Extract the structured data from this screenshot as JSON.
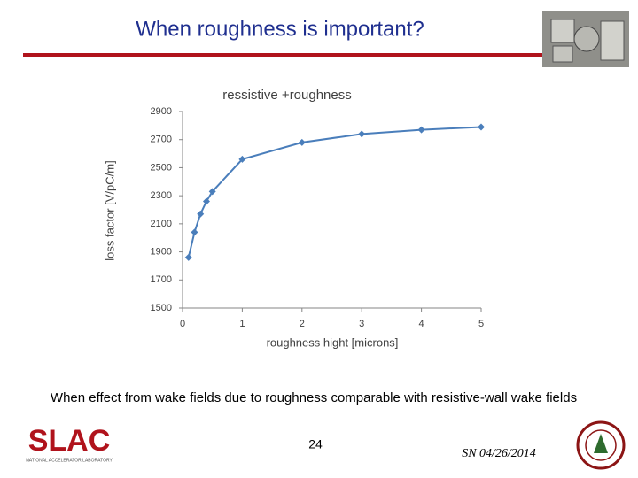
{
  "slide": {
    "title": "When roughness is important?",
    "caption": "When effect from wake fields due to roughness comparable with resistive-wall wake fields",
    "page_number": "24",
    "date": "SN 04/26/2014",
    "logo": "SLAC",
    "logo_subtitle": "NATIONAL ACCELERATOR LABORATORY"
  },
  "chart_data": {
    "type": "line",
    "title": "ressistive +roughness",
    "x_label": "roughness hight [microns]",
    "y_label": "loss factor [V/pC/m]",
    "x": [
      0.1,
      0.2,
      0.3,
      0.4,
      0.5,
      1,
      2,
      3,
      4,
      5
    ],
    "series": [
      {
        "name": "ressistive +roughness",
        "color": "#4a7ebb",
        "values": [
          1860,
          2040,
          2170,
          2260,
          2330,
          2560,
          2680,
          2740,
          2770,
          2790
        ]
      }
    ],
    "xlim": [
      0,
      5
    ],
    "xticks": [
      0,
      1,
      2,
      3,
      4,
      5
    ],
    "ylim": [
      1500,
      2900
    ],
    "yticks": [
      1500,
      1700,
      1900,
      2100,
      2300,
      2500,
      2700,
      2900
    ],
    "grid": false
  }
}
